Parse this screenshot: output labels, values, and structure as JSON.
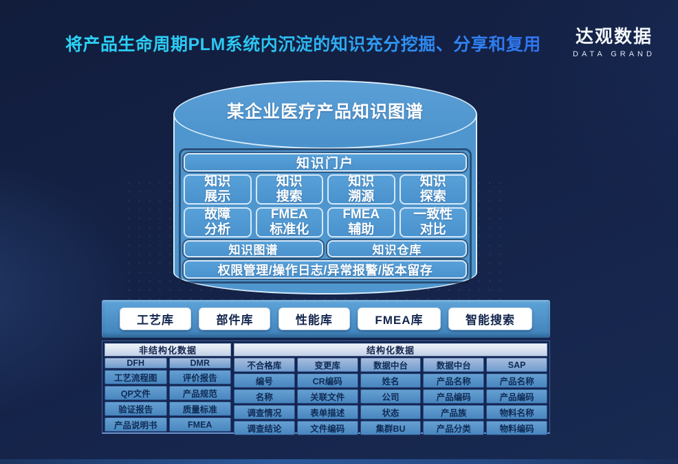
{
  "title": "将产品生命周期PLM系统内沉淀的知识充分挖掘、分享和复用",
  "logo": {
    "name": "达观数据",
    "subtitle": "DATA GRAND"
  },
  "colors": {
    "background": "#152349",
    "cylinder_blue": "#4f96ce",
    "cell_blue": "#4886bf",
    "title_gradient_start": "#2bd4f7",
    "title_gradient_end": "#2f6ff0"
  },
  "cylinder": {
    "title": "某企业医疗产品知识图谱",
    "portal": "知识门户",
    "features_row1": [
      "知识\n展示",
      "知识\n搜索",
      "知识\n溯源",
      "知识\n探索"
    ],
    "features_row2": [
      "故障\n分析",
      "FMEA\n标准化",
      "FMEA\n辅助",
      "一致性\n对比"
    ],
    "stores": [
      "知识图谱",
      "知识仓库"
    ],
    "admin_bar": "权限管理/操作日志/异常报警/版本留存"
  },
  "repositories": [
    "工艺库",
    "部件库",
    "性能库",
    "FMEA库",
    "智能搜索"
  ],
  "tables": {
    "unstructured": {
      "header": "非结构化数据",
      "rows": [
        [
          "DFH",
          "DMR"
        ],
        [
          "工艺流程图",
          "评价报告"
        ],
        [
          "QP文件",
          "产品规范"
        ],
        [
          "验证报告",
          "质量标准"
        ],
        [
          "产品说明书",
          "FMEA"
        ]
      ]
    },
    "structured": {
      "header": "结构化数据",
      "rows": [
        [
          "不合格库",
          "变更库",
          "数据中台",
          "数据中台",
          "SAP"
        ],
        [
          "编号",
          "CR编码",
          "姓名",
          "产品名称",
          "产品名称"
        ],
        [
          "名称",
          "关联文件",
          "公司",
          "产品编码",
          "产品编码"
        ],
        [
          "调查情况",
          "表单描述",
          "状态",
          "产品族",
          "物料名称"
        ],
        [
          "调查结论",
          "文件编码",
          "集群BU",
          "产品分类",
          "物料编码"
        ]
      ]
    }
  }
}
